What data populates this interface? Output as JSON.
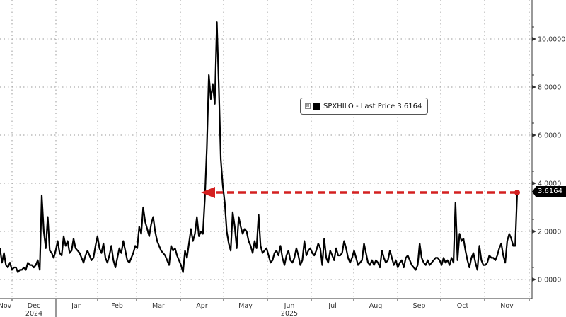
{
  "chart_data": {
    "type": "line",
    "title": "",
    "xlabel": "",
    "ylabel": "",
    "ylim": [
      -0.7,
      11.5
    ],
    "grid": true,
    "legend_position": "inside-top-center",
    "series": [
      {
        "name": "SPXHILO",
        "label": "SPXHILO - Last Price 3.6164",
        "color": "#000000",
        "last_value": 3.6164,
        "values": [
          1.3,
          0.7,
          1.1,
          0.6,
          0.5,
          0.7,
          0.4,
          0.5,
          0.5,
          0.3,
          0.4,
          0.4,
          0.5,
          0.4,
          0.7,
          0.6,
          0.6,
          0.5,
          0.6,
          0.8,
          0.4,
          3.5,
          2.0,
          1.3,
          2.6,
          1.2,
          1.1,
          0.9,
          1.2,
          1.6,
          1.1,
          1.0,
          1.8,
          1.4,
          1.6,
          1.1,
          1.2,
          1.7,
          1.3,
          1.2,
          1.1,
          0.9,
          0.7,
          1.0,
          1.2,
          1.0,
          0.8,
          0.9,
          1.4,
          1.8,
          1.3,
          1.1,
          1.5,
          0.9,
          0.7,
          1.0,
          1.4,
          0.8,
          0.5,
          0.9,
          1.3,
          1.1,
          1.6,
          1.2,
          0.8,
          0.7,
          0.9,
          1.1,
          1.4,
          1.3,
          2.2,
          1.9,
          3.0,
          2.4,
          2.1,
          1.8,
          2.3,
          2.6,
          2.0,
          1.6,
          1.4,
          1.2,
          1.1,
          1.0,
          0.8,
          0.6,
          1.4,
          1.2,
          1.3,
          1.0,
          0.8,
          0.6,
          0.3,
          1.2,
          0.9,
          1.5,
          2.1,
          1.6,
          1.9,
          2.6,
          1.8,
          2.0,
          1.9,
          3.4,
          5.5,
          8.5,
          7.5,
          8.1,
          7.3,
          10.7,
          8.0,
          5.0,
          3.9,
          3.2,
          2.0,
          1.5,
          1.2,
          2.8,
          2.2,
          1.3,
          2.6,
          2.2,
          1.9,
          2.1,
          2.0,
          1.6,
          1.4,
          1.1,
          1.6,
          1.3,
          2.7,
          1.4,
          1.1,
          1.2,
          1.3,
          1.0,
          0.7,
          0.8,
          1.1,
          1.2,
          1.0,
          1.4,
          0.9,
          0.6,
          1.0,
          1.2,
          0.8,
          0.7,
          0.9,
          1.3,
          1.0,
          0.6,
          0.8,
          1.6,
          1.0,
          1.2,
          1.3,
          1.1,
          1.0,
          1.2,
          1.5,
          1.3,
          0.6,
          1.7,
          0.9,
          0.7,
          1.2,
          1.0,
          0.8,
          1.3,
          1.0,
          1.0,
          1.1,
          1.6,
          1.3,
          0.9,
          0.7,
          0.9,
          1.2,
          0.9,
          0.6,
          0.7,
          0.8,
          1.5,
          1.1,
          0.7,
          0.6,
          0.8,
          0.6,
          0.8,
          0.7,
          0.5,
          1.2,
          0.9,
          0.7,
          0.8,
          1.2,
          0.9,
          0.6,
          0.8,
          0.5,
          0.7,
          0.8,
          0.5,
          0.9,
          1.0,
          0.8,
          0.6,
          0.5,
          0.4,
          0.6,
          1.5,
          0.9,
          0.7,
          0.6,
          0.8,
          0.6,
          0.7,
          0.8,
          0.9,
          0.9,
          0.8,
          0.6,
          0.9,
          0.7,
          0.8,
          0.6,
          0.9,
          0.7,
          3.2,
          0.8,
          1.9,
          1.6,
          1.7,
          1.2,
          0.8,
          0.5,
          0.9,
          1.1,
          0.7,
          0.4,
          1.4,
          0.8,
          0.6,
          0.6,
          0.7,
          1.0,
          0.9,
          0.9,
          0.8,
          1.0,
          1.3,
          1.5,
          1.0,
          0.7,
          1.6,
          1.9,
          1.7,
          1.4,
          1.4,
          3.6164
        ]
      }
    ],
    "y_ticks": [
      0,
      2,
      4,
      6,
      8,
      10
    ],
    "y_tick_labels": [
      "0.0000",
      "2.0000",
      "4.0000",
      "6.0000",
      "8.0000",
      "10.0000"
    ],
    "x_tick_labels": [
      "Nov",
      "Dec",
      "Jan",
      "Feb",
      "Mar",
      "Apr",
      "May",
      "Jun",
      "Jul",
      "Aug",
      "Sep",
      "Oct",
      "Nov"
    ],
    "x_year_labels": [
      {
        "label": "2024",
        "under": "Dec"
      },
      {
        "label": "2025",
        "under": "Jun"
      }
    ],
    "annotations": [
      {
        "type": "dashed-arrow",
        "color": "#d42020",
        "from_value": 3.6164,
        "pointing_to": "Apr 2025 spike level",
        "description": "Red dashed arrow from last value back to April 2025 level"
      },
      {
        "type": "last-value-badge",
        "text": "3.6164"
      }
    ]
  },
  "legend": {
    "expand_glyph": "⊞",
    "label": "SPXHILO - Last Price 3.6164"
  },
  "last_value_badge": "3.6164",
  "colors": {
    "line": "#000000",
    "arrow": "#d42020",
    "grid": "#9a9a9a",
    "axis": "#333333",
    "badge_bg": "#000000",
    "badge_text": "#ffffff"
  }
}
